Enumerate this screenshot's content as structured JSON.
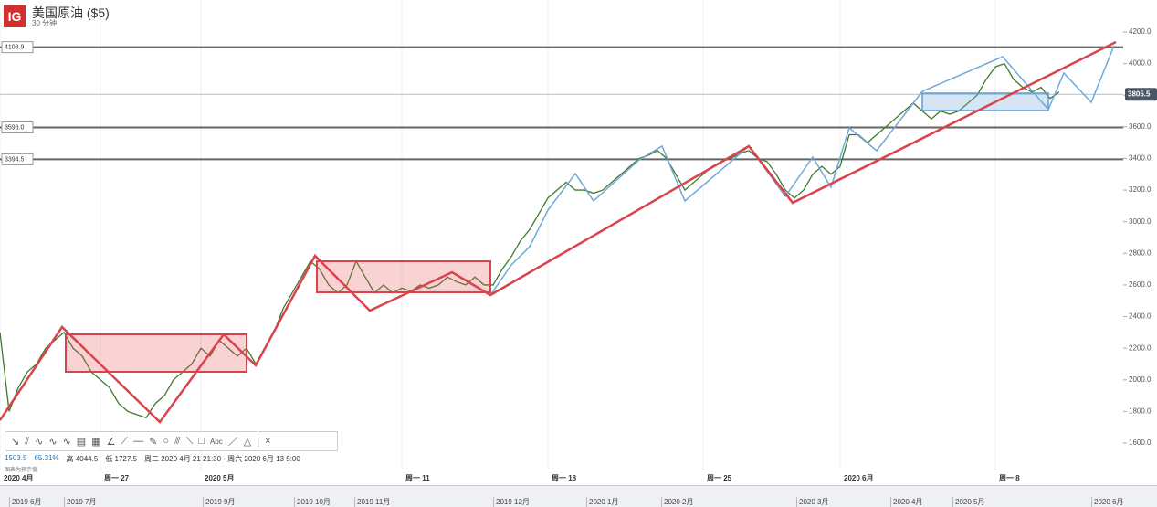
{
  "header": {
    "logo": "IG",
    "title": "美国原油 ($5)",
    "subtitle": "30 分钟"
  },
  "chart_data": {
    "type": "line",
    "color": "#3f7a2e",
    "grid": true,
    "values": [
      2300,
      1800,
      1950,
      2050,
      2100,
      2200,
      2250,
      2300,
      2200,
      2150,
      2050,
      2000,
      1950,
      1850,
      1800,
      1780,
      1760,
      1850,
      1900,
      2000,
      2050,
      2100,
      2200,
      2150,
      2250,
      2200,
      2150,
      2200,
      2100,
      2200,
      2300,
      2450,
      2550,
      2650,
      2750,
      2700,
      2600,
      2550,
      2600,
      2750,
      2650,
      2550,
      2600,
      2550,
      2580,
      2560,
      2600,
      2580,
      2600,
      2650,
      2620,
      2600,
      2650,
      2600,
      2600,
      2700,
      2780,
      2880,
      2950,
      3050,
      3150,
      3200,
      3250,
      3200,
      3200,
      3180,
      3200,
      3250,
      3300,
      3350,
      3400,
      3420,
      3450,
      3400,
      3300,
      3200,
      3250,
      3300,
      3350,
      3380,
      3400,
      3430,
      3450,
      3400,
      3380,
      3300,
      3200,
      3150,
      3200,
      3300,
      3350,
      3300,
      3350,
      3550,
      3550,
      3500,
      3550,
      3600,
      3650,
      3700,
      3750,
      3700,
      3650,
      3700,
      3680,
      3700,
      3750,
      3800,
      3900,
      3980,
      4000,
      3900,
      3850,
      3820,
      3850,
      3780,
      3820
    ],
    "xlim": [
      0,
      123
    ],
    "xticks": [
      {
        "value": 0,
        "label": "2020 4月"
      },
      {
        "value": 11,
        "label": "周一 27"
      },
      {
        "value": 22,
        "label": "2020 5月"
      },
      {
        "value": 44,
        "label": "周一 11"
      },
      {
        "value": 60,
        "label": "周一 18"
      },
      {
        "value": 77,
        "label": "周一 25"
      },
      {
        "value": 92,
        "label": "2020 6月"
      },
      {
        "value": 109,
        "label": "周一 8"
      }
    ],
    "ylim": [
      1600,
      4200
    ],
    "yticks": [
      {
        "value": 1600,
        "label": "1600.0"
      },
      {
        "value": 1800,
        "label": "1800.0"
      },
      {
        "value": 2000,
        "label": "2000.0"
      },
      {
        "value": 2200,
        "label": "2200.0"
      },
      {
        "value": 2400,
        "label": "2400.0"
      },
      {
        "value": 2600,
        "label": "2600.0"
      },
      {
        "value": 2800,
        "label": "2800.0"
      },
      {
        "value": 3000,
        "label": "3000.0"
      },
      {
        "value": 3200,
        "label": "3200.0"
      },
      {
        "value": 3400,
        "label": "3400.0"
      },
      {
        "value": 3600,
        "label": "3600.0"
      },
      {
        "value": 3800,
        "label": "3800.0"
      },
      {
        "value": 4000,
        "label": "4000.0"
      },
      {
        "value": 4200,
        "label": "4200.0"
      }
    ],
    "levels": [
      4103.9,
      {
        "value": 3596,
        "label": "3596.0"
      },
      3394.5
    ],
    "last_price": 3805.5
  },
  "info": {
    "value": "1503.5",
    "percent": "65.31%",
    "high": "高 4044.5",
    "low": "低 1727.5",
    "range": "周二 2020 4月 21 21:30 - 周六 2020 6月 13 5:00",
    "note": "图表为预示值"
  },
  "toolbar": {
    "text_tool": "Abc",
    "close": "×"
  },
  "navigator": {
    "labels": [
      "2019 6月",
      "2019 7月",
      "2019 9月",
      "2019 10月",
      "2019 11月",
      "2019 12月",
      "2020 1月",
      "2020 2月",
      "2020 3月",
      "2020 4月",
      "2020 5月",
      "2020 6月"
    ]
  }
}
